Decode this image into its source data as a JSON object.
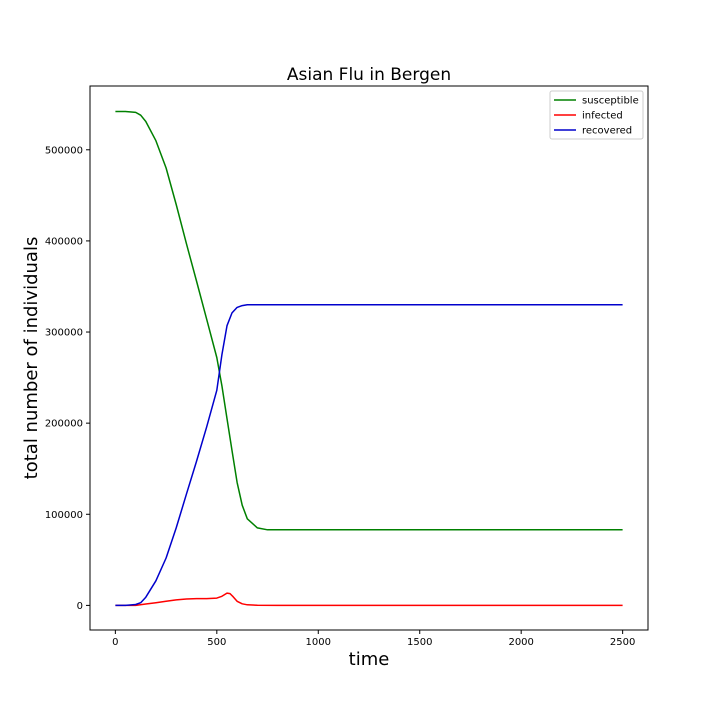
{
  "chart_data": {
    "type": "line",
    "title": "Asian Flu in Bergen",
    "xlabel": "time",
    "ylabel": "total number of individuals",
    "xlim": [
      -125,
      2625
    ],
    "ylim": [
      -27000,
      570000
    ],
    "x_ticks": [
      0,
      500,
      1000,
      1500,
      2000,
      2500
    ],
    "y_ticks": [
      0,
      100000,
      200000,
      300000,
      400000,
      500000
    ],
    "x_tick_labels": [
      "0",
      "500",
      "1000",
      "1500",
      "2000",
      "2500"
    ],
    "y_tick_labels": [
      "0",
      "100000",
      "200000",
      "300000",
      "400000",
      "500000"
    ],
    "grid": false,
    "legend_position": "top-right",
    "series": [
      {
        "name": "susceptible",
        "color": "#008000",
        "x": [
          0,
          50,
          100,
          125,
          150,
          200,
          250,
          300,
          350,
          400,
          450,
          500,
          525,
          550,
          575,
          600,
          625,
          650,
          700,
          750,
          1000,
          1500,
          2000,
          2500
        ],
        "y": [
          542000,
          542000,
          541000,
          538000,
          531000,
          510000,
          480000,
          440000,
          397000,
          356000,
          314000,
          272000,
          241000,
          205000,
          170000,
          135000,
          110000,
          95000,
          85000,
          83000,
          83000,
          83000,
          83000,
          83000
        ]
      },
      {
        "name": "infected",
        "color": "#ff0000",
        "x": [
          0,
          100,
          150,
          200,
          250,
          300,
          350,
          400,
          450,
          500,
          525,
          550,
          565,
          580,
          600,
          625,
          650,
          700,
          800,
          1000,
          1500,
          2000,
          2500
        ],
        "y": [
          0,
          0,
          1500,
          3000,
          4500,
          6000,
          7000,
          7500,
          7500,
          8000,
          10000,
          13500,
          13000,
          9500,
          4500,
          1800,
          700,
          200,
          0,
          0,
          0,
          0,
          0
        ]
      },
      {
        "name": "recovered",
        "color": "#0000cc",
        "x": [
          0,
          50,
          100,
          125,
          150,
          200,
          250,
          300,
          350,
          400,
          450,
          500,
          525,
          550,
          575,
          600,
          625,
          650,
          700,
          750,
          1000,
          1500,
          2000,
          2500
        ],
        "y": [
          0,
          0,
          1000,
          3000,
          9000,
          27000,
          52000,
          85000,
          122000,
          158000,
          196000,
          236000,
          275000,
          307000,
          321000,
          327000,
          329000,
          330000,
          330000,
          330000,
          330000,
          330000,
          330000,
          330000
        ]
      }
    ]
  }
}
